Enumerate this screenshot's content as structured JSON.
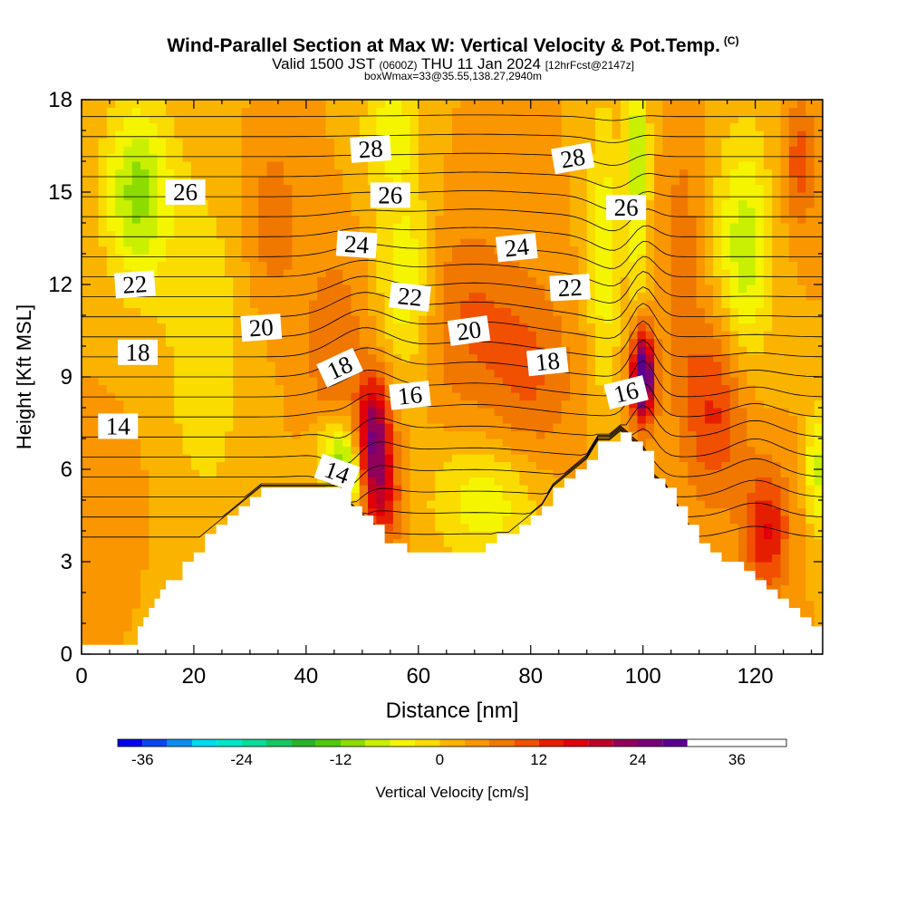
{
  "title": "Wind-Parallel Section at Max W: Vertical Velocity & Pot.Temp.",
  "title_mark": "(C)",
  "subtitle_main": "Valid 1500 JST",
  "subtitle_utc": "(0600Z)",
  "subtitle_date": "THU 11 Jan 2024",
  "subtitle_fcst": "[12hrFcst@2147z]",
  "subnote": "boxWmax=33@35.55,138.27,2940m",
  "chart_data": {
    "type": "heatmap",
    "xlabel": "Distance [nm]",
    "ylabel": "Height [Kft MSL]",
    "xlim": [
      0,
      132
    ],
    "ylim": [
      0,
      18
    ],
    "x_ticks": [
      0,
      20,
      40,
      60,
      80,
      100,
      120
    ],
    "y_ticks": [
      0,
      3,
      6,
      9,
      12,
      15,
      18
    ],
    "colorbar": {
      "label": "Vertical Velocity [cm/s]",
      "min": -39,
      "max": 42,
      "step": 3,
      "tick_values": [
        -36,
        -24,
        -12,
        0,
        12,
        24,
        36
      ],
      "colors": [
        "#0000f0",
        "#0a46f0",
        "#0a8ff0",
        "#00dcf0",
        "#00e6c8",
        "#0adc9a",
        "#14c864",
        "#28b428",
        "#50c80a",
        "#8cdc00",
        "#c8f000",
        "#f5f500",
        "#fadc00",
        "#fab400",
        "#fa9600",
        "#f07800",
        "#f05000",
        "#e61e00",
        "#e1000a",
        "#be0028",
        "#91005a",
        "#780078",
        "#5a0091"
      ]
    },
    "terrain_profile": {
      "x": [
        0,
        9,
        10,
        11,
        12,
        13,
        14,
        15,
        18,
        20,
        22,
        24,
        26,
        28,
        30,
        32,
        34,
        36,
        38,
        40,
        42,
        44,
        46,
        48,
        50,
        52,
        54,
        56,
        58,
        60,
        62,
        64,
        66,
        68,
        70,
        72,
        74,
        76,
        78,
        80,
        82,
        84,
        86,
        88,
        90,
        92,
        94,
        96,
        98,
        100,
        102,
        104,
        106,
        108,
        110,
        112,
        114,
        116,
        118,
        120,
        122,
        124,
        126,
        128,
        130,
        132
      ],
      "y": [
        0.3,
        0.3,
        0.9,
        1.2,
        1.5,
        1.8,
        2.1,
        2.4,
        3.0,
        3.3,
        3.9,
        4.2,
        4.5,
        4.8,
        5.1,
        5.4,
        5.4,
        5.4,
        5.4,
        5.4,
        5.4,
        5.4,
        5.4,
        4.8,
        4.5,
        4.2,
        3.6,
        3.6,
        3.3,
        3.3,
        3.3,
        3.3,
        3.3,
        3.3,
        3.3,
        3.6,
        3.9,
        3.9,
        4.2,
        4.5,
        4.8,
        5.4,
        5.7,
        6.0,
        6.3,
        6.9,
        6.9,
        7.2,
        6.9,
        6.6,
        5.7,
        5.4,
        4.8,
        4.2,
        3.6,
        3.3,
        3.0,
        3.0,
        2.7,
        2.4,
        2.1,
        1.8,
        1.5,
        1.2,
        0.9,
        0.9
      ]
    },
    "theta_labels": [
      {
        "text": "28",
        "x": 51.5,
        "y": 16.4,
        "rot": -4
      },
      {
        "text": "28",
        "x": 87.5,
        "y": 16.1,
        "rot": -10
      },
      {
        "text": "26",
        "x": 18.5,
        "y": 15.0,
        "rot": 0
      },
      {
        "text": "26",
        "x": 55,
        "y": 14.9,
        "rot": 0
      },
      {
        "text": "26",
        "x": 97,
        "y": 14.5,
        "rot": 0
      },
      {
        "text": "24",
        "x": 49,
        "y": 13.3,
        "rot": 4
      },
      {
        "text": "24",
        "x": 77.5,
        "y": 13.2,
        "rot": -6
      },
      {
        "text": "22",
        "x": 9.5,
        "y": 12.0,
        "rot": -4
      },
      {
        "text": "22",
        "x": 58.5,
        "y": 11.6,
        "rot": 6
      },
      {
        "text": "22",
        "x": 87,
        "y": 11.9,
        "rot": -3
      },
      {
        "text": "20",
        "x": 32,
        "y": 10.6,
        "rot": -4
      },
      {
        "text": "20",
        "x": 69,
        "y": 10.5,
        "rot": -8
      },
      {
        "text": "18",
        "x": 10,
        "y": 9.8,
        "rot": 0
      },
      {
        "text": "18",
        "x": 46,
        "y": 9.3,
        "rot": -25
      },
      {
        "text": "18",
        "x": 83,
        "y": 9.5,
        "rot": -6
      },
      {
        "text": "16",
        "x": 58.5,
        "y": 8.4,
        "rot": -6
      },
      {
        "text": "16",
        "x": 97,
        "y": 8.5,
        "rot": -14
      },
      {
        "text": "14",
        "x": 6.5,
        "y": 7.4,
        "rot": 0
      },
      {
        "text": "14",
        "x": 45.5,
        "y": 5.9,
        "rot": 20
      }
    ]
  }
}
